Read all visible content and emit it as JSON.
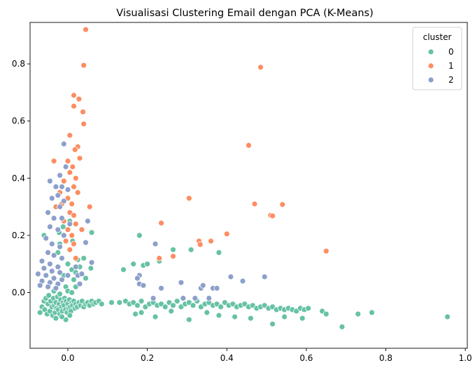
{
  "chart_data": {
    "type": "scatter",
    "title": "Visualisasi Clustering Email dengan PCA (K-Means)",
    "xlabel": "",
    "ylabel": "",
    "xlim": [
      -0.095,
      1.005
    ],
    "ylim": [
      -0.195,
      0.945
    ],
    "x_ticks": [
      0.0,
      0.2,
      0.4,
      0.6,
      0.8,
      1.0
    ],
    "x_tick_labels": [
      "0.0",
      "0.2",
      "0.4",
      "0.6",
      "0.8",
      "1.0"
    ],
    "y_ticks": [
      0.0,
      0.2,
      0.4,
      0.6,
      0.8
    ],
    "y_tick_labels": [
      "0.0",
      "0.2",
      "0.4",
      "0.6",
      "0.8"
    ],
    "grid": false,
    "legend": {
      "title": "cluster",
      "placement": "top-right",
      "entries": [
        "0",
        "1",
        "2"
      ]
    },
    "series": [
      {
        "name": "0",
        "color": "#66c2a5",
        "points": [
          [
            -0.07,
            -0.07
          ],
          [
            -0.065,
            -0.05
          ],
          [
            -0.06,
            -0.03
          ],
          [
            -0.058,
            -0.06
          ],
          [
            -0.055,
            -0.02
          ],
          [
            -0.052,
            -0.075
          ],
          [
            -0.05,
            -0.04
          ],
          [
            -0.048,
            -0.01
          ],
          [
            -0.045,
            -0.065
          ],
          [
            -0.043,
            -0.03
          ],
          [
            -0.04,
            -0.05
          ],
          [
            -0.038,
            -0.08
          ],
          [
            -0.036,
            -0.02
          ],
          [
            -0.034,
            -0.045
          ],
          [
            -0.032,
            -0.07
          ],
          [
            -0.03,
            -0.035
          ],
          [
            -0.028,
            -0.055
          ],
          [
            -0.026,
            -0.015
          ],
          [
            -0.024,
            -0.06
          ],
          [
            -0.022,
            -0.04
          ],
          [
            -0.02,
            -0.075
          ],
          [
            -0.018,
            -0.025
          ],
          [
            -0.016,
            -0.05
          ],
          [
            -0.014,
            -0.065
          ],
          [
            -0.012,
            -0.035
          ],
          [
            -0.01,
            -0.045
          ],
          [
            -0.008,
            -0.02
          ],
          [
            -0.006,
            -0.06
          ],
          [
            -0.004,
            -0.03
          ],
          [
            -0.002,
            -0.07
          ],
          [
            0.0,
            -0.04
          ],
          [
            0.002,
            -0.055
          ],
          [
            0.004,
            -0.025
          ],
          [
            0.006,
            -0.05
          ],
          [
            0.008,
            -0.065
          ],
          [
            0.01,
            -0.035
          ],
          [
            0.012,
            -0.045
          ],
          [
            0.015,
            -0.03
          ],
          [
            0.018,
            -0.055
          ],
          [
            0.02,
            -0.04
          ],
          [
            0.024,
            -0.05
          ],
          [
            0.028,
            -0.035
          ],
          [
            0.032,
            -0.045
          ],
          [
            0.036,
            -0.03
          ],
          [
            0.04,
            -0.05
          ],
          [
            0.045,
            -0.04
          ],
          [
            0.05,
            -0.035
          ],
          [
            0.055,
            -0.045
          ],
          [
            0.06,
            -0.03
          ],
          [
            0.065,
            -0.04
          ],
          [
            0.07,
            -0.035
          ],
          [
            0.078,
            -0.03
          ],
          [
            0.085,
            -0.04
          ],
          [
            -0.005,
            -0.095
          ],
          [
            -0.015,
            -0.085
          ],
          [
            0.005,
            -0.08
          ],
          [
            -0.03,
            -0.09
          ],
          [
            -0.06,
            0.2
          ],
          [
            -0.025,
            0.14
          ],
          [
            -0.02,
            0.17
          ],
          [
            -0.015,
            0.12
          ],
          [
            -0.01,
            0.06
          ],
          [
            -0.005,
            0.02
          ],
          [
            0.0,
            0.1
          ],
          [
            0.005,
            0.15
          ],
          [
            0.01,
            0.08
          ],
          [
            0.015,
            0.045
          ],
          [
            0.02,
            0.07
          ],
          [
            0.025,
            0.115
          ],
          [
            0.03,
            0.09
          ],
          [
            0.04,
            0.12
          ],
          [
            0.045,
            0.05
          ],
          [
            0.058,
            0.085
          ],
          [
            0.06,
            0.21
          ],
          [
            -0.035,
            0.005
          ],
          [
            -0.02,
            -0.005
          ],
          [
            0.0,
            0.005
          ],
          [
            0.01,
            0.0
          ],
          [
            -0.012,
            0.23
          ],
          [
            -0.022,
            0.21
          ],
          [
            0.005,
            0.25
          ],
          [
            0.012,
            0.18
          ],
          [
            0.02,
            0.02
          ],
          [
            0.11,
            -0.035
          ],
          [
            0.13,
            -0.035
          ],
          [
            0.145,
            -0.03
          ],
          [
            0.155,
            -0.04
          ],
          [
            0.165,
            -0.035
          ],
          [
            0.175,
            -0.045
          ],
          [
            0.185,
            -0.03
          ],
          [
            0.195,
            -0.05
          ],
          [
            0.205,
            -0.04
          ],
          [
            0.215,
            -0.035
          ],
          [
            0.225,
            -0.045
          ],
          [
            0.235,
            -0.04
          ],
          [
            0.245,
            -0.05
          ],
          [
            0.255,
            -0.035
          ],
          [
            0.265,
            -0.045
          ],
          [
            0.275,
            -0.03
          ],
          [
            0.285,
            -0.05
          ],
          [
            0.295,
            -0.04
          ],
          [
            0.305,
            -0.035
          ],
          [
            0.315,
            -0.045
          ],
          [
            0.325,
            -0.03
          ],
          [
            0.335,
            -0.05
          ],
          [
            0.345,
            -0.04
          ],
          [
            0.355,
            -0.035
          ],
          [
            0.365,
            -0.045
          ],
          [
            0.375,
            -0.04
          ],
          [
            0.385,
            -0.05
          ],
          [
            0.395,
            -0.035
          ],
          [
            0.405,
            -0.045
          ],
          [
            0.415,
            -0.04
          ],
          [
            0.425,
            -0.05
          ],
          [
            0.435,
            -0.045
          ],
          [
            0.445,
            -0.04
          ],
          [
            0.455,
            -0.05
          ],
          [
            0.465,
            -0.045
          ],
          [
            0.475,
            -0.055
          ],
          [
            0.485,
            -0.05
          ],
          [
            0.495,
            -0.045
          ],
          [
            0.505,
            -0.055
          ],
          [
            0.515,
            -0.05
          ],
          [
            0.525,
            -0.06
          ],
          [
            0.535,
            -0.055
          ],
          [
            0.545,
            -0.06
          ],
          [
            0.555,
            -0.055
          ],
          [
            0.565,
            -0.06
          ],
          [
            0.575,
            -0.065
          ],
          [
            0.585,
            -0.055
          ],
          [
            0.595,
            -0.06
          ],
          [
            0.605,
            -0.055
          ],
          [
            0.64,
            -0.065
          ],
          [
            0.65,
            -0.075
          ],
          [
            0.17,
            -0.075
          ],
          [
            0.185,
            -0.07
          ],
          [
            0.22,
            -0.085
          ],
          [
            0.26,
            -0.065
          ],
          [
            0.305,
            -0.095
          ],
          [
            0.35,
            -0.07
          ],
          [
            0.38,
            -0.08
          ],
          [
            0.42,
            -0.085
          ],
          [
            0.46,
            -0.09
          ],
          [
            0.515,
            -0.11
          ],
          [
            0.545,
            -0.085
          ],
          [
            0.59,
            -0.09
          ],
          [
            0.69,
            -0.12
          ],
          [
            0.73,
            -0.075
          ],
          [
            0.765,
            -0.07
          ],
          [
            0.955,
            -0.085
          ],
          [
            0.14,
            0.08
          ],
          [
            0.165,
            0.1
          ],
          [
            0.18,
            0.2
          ],
          [
            0.19,
            0.095
          ],
          [
            0.2,
            0.1
          ],
          [
            0.23,
            0.11
          ],
          [
            0.265,
            0.15
          ],
          [
            0.31,
            0.15
          ],
          [
            0.38,
            0.14
          ]
        ]
      },
      {
        "name": "1",
        "color": "#fc8d62",
        "points": [
          [
            0.045,
            0.92
          ],
          [
            0.04,
            0.795
          ],
          [
            0.015,
            0.69
          ],
          [
            0.028,
            0.677
          ],
          [
            0.015,
            0.652
          ],
          [
            0.038,
            0.632
          ],
          [
            0.04,
            0.59
          ],
          [
            0.005,
            0.55
          ],
          [
            0.025,
            0.51
          ],
          [
            0.018,
            0.5
          ],
          [
            0.03,
            0.47
          ],
          [
            0.0,
            0.46
          ],
          [
            -0.035,
            0.46
          ],
          [
            0.012,
            0.44
          ],
          [
            0.005,
            0.42
          ],
          [
            0.02,
            0.4
          ],
          [
            -0.01,
            0.39
          ],
          [
            0.015,
            0.37
          ],
          [
            0.025,
            0.35
          ],
          [
            -0.02,
            0.35
          ],
          [
            0.0,
            0.33
          ],
          [
            0.01,
            0.31
          ],
          [
            -0.015,
            0.31
          ],
          [
            -0.03,
            0.3
          ],
          [
            0.005,
            0.28
          ],
          [
            0.015,
            0.27
          ],
          [
            -0.01,
            0.25
          ],
          [
            0.02,
            0.24
          ],
          [
            0.0,
            0.22
          ],
          [
            0.01,
            0.2
          ],
          [
            -0.005,
            0.18
          ],
          [
            0.015,
            0.17
          ],
          [
            0.005,
            0.15
          ],
          [
            0.02,
            0.12
          ],
          [
            0.055,
            0.3
          ],
          [
            0.035,
            0.22
          ],
          [
            0.485,
            0.788
          ],
          [
            0.455,
            0.515
          ],
          [
            0.305,
            0.33
          ],
          [
            0.47,
            0.31
          ],
          [
            0.54,
            0.308
          ],
          [
            0.51,
            0.27
          ],
          [
            0.515,
            0.268
          ],
          [
            0.235,
            0.243
          ],
          [
            0.4,
            0.205
          ],
          [
            0.36,
            0.18
          ],
          [
            0.33,
            0.18
          ],
          [
            0.333,
            0.168
          ],
          [
            0.265,
            0.127
          ],
          [
            0.23,
            0.12
          ],
          [
            0.65,
            0.145
          ]
        ]
      },
      {
        "name": "2",
        "color": "#8da0cb",
        "points": [
          [
            -0.01,
            0.52
          ],
          [
            -0.005,
            0.44
          ],
          [
            -0.02,
            0.41
          ],
          [
            -0.045,
            0.39
          ],
          [
            -0.03,
            0.37
          ],
          [
            -0.015,
            0.37
          ],
          [
            0.0,
            0.36
          ],
          [
            -0.025,
            0.34
          ],
          [
            -0.04,
            0.33
          ],
          [
            -0.01,
            0.32
          ],
          [
            -0.02,
            0.3
          ],
          [
            -0.05,
            0.28
          ],
          [
            -0.035,
            0.26
          ],
          [
            -0.015,
            0.26
          ],
          [
            0.005,
            0.24
          ],
          [
            -0.045,
            0.23
          ],
          [
            -0.025,
            0.22
          ],
          [
            -0.01,
            0.2
          ],
          [
            -0.055,
            0.19
          ],
          [
            -0.04,
            0.17
          ],
          [
            -0.02,
            0.16
          ],
          [
            -0.05,
            0.14
          ],
          [
            -0.035,
            0.13
          ],
          [
            -0.015,
            0.12
          ],
          [
            -0.065,
            0.11
          ],
          [
            -0.045,
            0.1
          ],
          [
            -0.025,
            0.09
          ],
          [
            -0.06,
            0.085
          ],
          [
            -0.04,
            0.075
          ],
          [
            -0.02,
            0.07
          ],
          [
            -0.075,
            0.065
          ],
          [
            -0.055,
            0.06
          ],
          [
            -0.035,
            0.05
          ],
          [
            -0.015,
            0.045
          ],
          [
            -0.065,
            0.04
          ],
          [
            -0.045,
            0.035
          ],
          [
            -0.025,
            0.03
          ],
          [
            -0.05,
            0.02
          ],
          [
            -0.03,
            0.015
          ],
          [
            -0.07,
            0.025
          ],
          [
            0.0,
            0.06
          ],
          [
            0.02,
            0.09
          ],
          [
            0.03,
            0.03
          ],
          [
            0.025,
            0.06
          ],
          [
            0.05,
            0.25
          ],
          [
            0.06,
            0.105
          ],
          [
            0.035,
            0.065
          ],
          [
            0.045,
            0.175
          ],
          [
            0.18,
            0.06
          ],
          [
            0.175,
            0.05
          ],
          [
            0.18,
            0.03
          ],
          [
            0.19,
            0.025
          ],
          [
            0.22,
            0.17
          ],
          [
            0.235,
            0.015
          ],
          [
            0.285,
            0.035
          ],
          [
            0.335,
            0.015
          ],
          [
            0.34,
            0.025
          ],
          [
            0.365,
            0.015
          ],
          [
            0.375,
            0.015
          ],
          [
            0.41,
            0.055
          ],
          [
            0.44,
            0.04
          ],
          [
            0.495,
            0.055
          ],
          [
            0.29,
            -0.02
          ],
          [
            0.32,
            -0.02
          ],
          [
            0.355,
            -0.02
          ],
          [
            0.215,
            -0.02
          ]
        ]
      }
    ]
  }
}
